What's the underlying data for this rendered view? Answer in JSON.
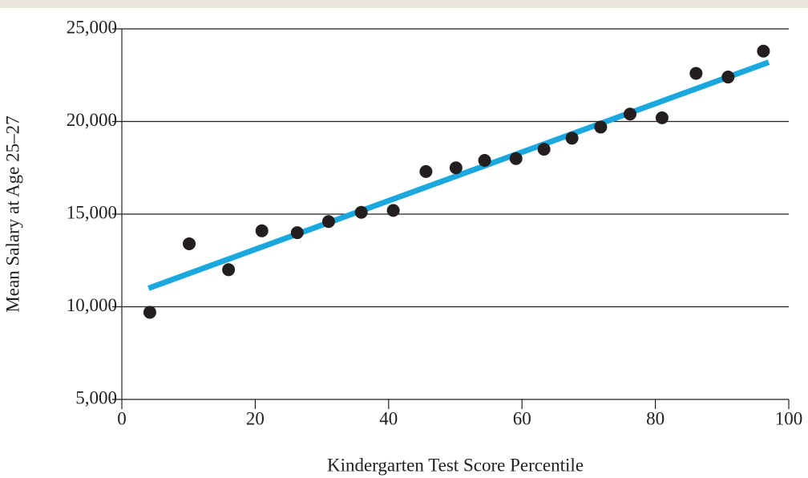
{
  "chart_data": {
    "type": "scatter",
    "x_label": "Kindergarten Test Score Percentile",
    "y_label": "Mean Salary at Age 25–27",
    "x": [
      4.2,
      10.1,
      16.0,
      21.0,
      26.3,
      31.0,
      35.9,
      40.7,
      45.6,
      50.1,
      54.4,
      59.1,
      63.3,
      67.5,
      71.8,
      76.2,
      81.0,
      86.1,
      90.9,
      96.2
    ],
    "values": [
      9700,
      13400,
      12000,
      14100,
      14000,
      14600,
      15100,
      15200,
      17300,
      17500,
      17900,
      18000,
      18500,
      19100,
      19700,
      20400,
      20200,
      22600,
      22400,
      23800
    ],
    "color": "#231f20",
    "fit_line": {
      "x": [
        4,
        97
      ],
      "values": [
        11000,
        23200
      ],
      "color": "#1ba8de"
    },
    "xlim": [
      0,
      100
    ],
    "xticks": [
      0,
      20,
      40,
      60,
      80,
      100
    ],
    "ylim": [
      5000,
      25000
    ],
    "yticks": [
      {
        "value": 5000,
        "label": "5,000"
      },
      {
        "value": 10000,
        "label": "10,000"
      },
      {
        "value": 15000,
        "label": "15,000"
      },
      {
        "value": 20000,
        "label": "20,000"
      },
      {
        "value": 25000,
        "label": "25,000"
      }
    ],
    "grid": true
  }
}
